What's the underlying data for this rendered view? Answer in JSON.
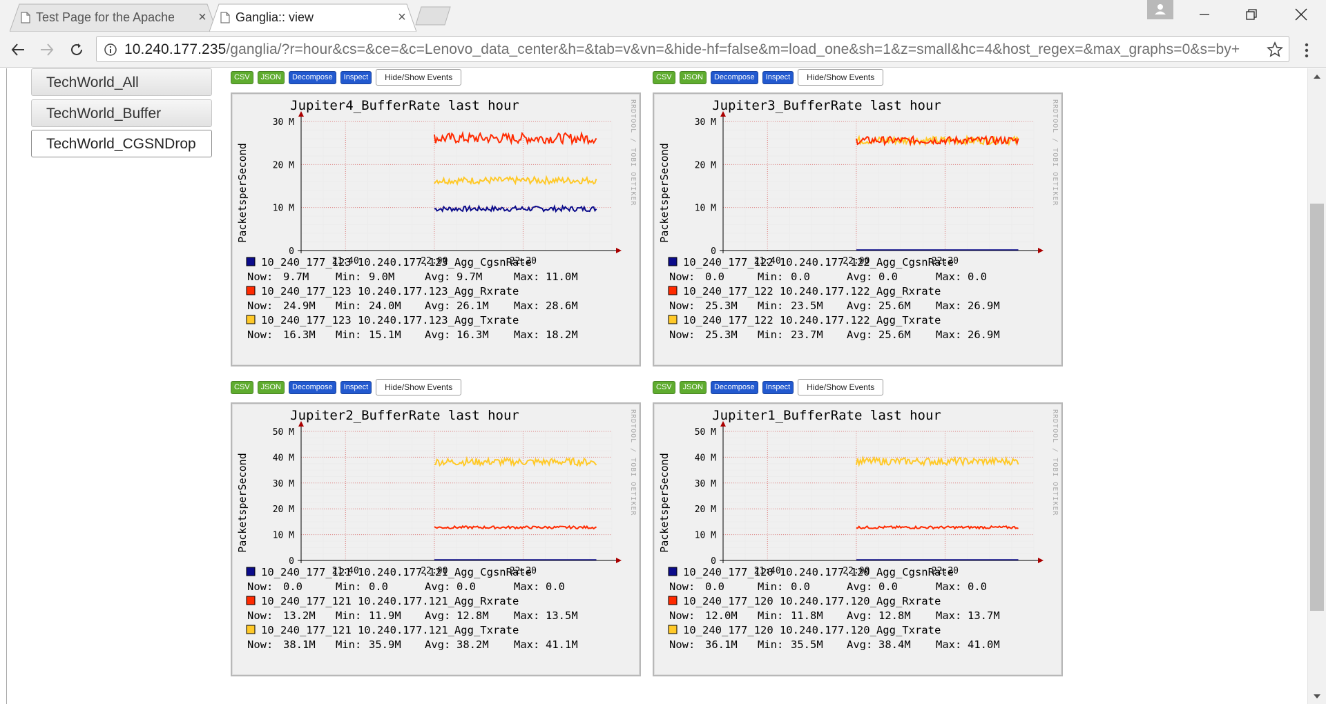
{
  "browser": {
    "tabs": [
      {
        "title": "Test Page for the Apache",
        "active": false
      },
      {
        "title": "Ganglia:: view",
        "active": true
      }
    ],
    "close_glyph": "×",
    "url_host": "10.240.177.235",
    "url_path": "/ganglia/?r=hour&cs=&ce=&c=Lenovo_data_center&h=&tab=v&vn=&hide-hf=false&m=load_one&sh=1&z=small&hc=4&host_regex=&max_graphs=0&s=by+"
  },
  "views": [
    {
      "label": "TechWorld_All",
      "active": false
    },
    {
      "label": "TechWorld_Buffer",
      "active": false
    },
    {
      "label": "TechWorld_CGSNDrop",
      "active": true
    }
  ],
  "graph_buttons": {
    "csv": "CSV",
    "json": "JSON",
    "decompose": "Decompose",
    "inspect": "Inspect",
    "events": "Hide/Show Events"
  },
  "colors": {
    "cgsn": "#0b0b8a",
    "rx": "#ff2a00",
    "tx": "#ffc928",
    "grid_major": "#e08080",
    "grid_minor": "#ececec",
    "axis": "#000000",
    "arrow": "#aa0000"
  },
  "graph_common": {
    "ylabel": "PacketsperSecond",
    "watermark": "RRDTOOL / TOBI OETIKER",
    "x_ticks": [
      "21:40",
      "22:00",
      "22:20"
    ],
    "stat_labels": {
      "now": "Now:",
      "min": "Min:",
      "avg": "Avg:",
      "max": "Max:"
    }
  },
  "graphs": [
    {
      "title": "Jupiter4_BufferRate last hour",
      "y_ticks": [
        "30 M",
        "20 M",
        "10 M",
        "0"
      ],
      "y_max": 30,
      "legend": [
        {
          "label": "10_240_177_123 10.240.177.123_Agg_CgsnRate",
          "color": "#0b0b8a",
          "now": "9.7M",
          "min": "9.0M",
          "avg": "9.7M",
          "max": "11.0M"
        },
        {
          "label": "10_240_177_123 10.240.177.123_Agg_Rxrate",
          "color": "#ff2a00",
          "now": "24.9M",
          "min": "24.0M",
          "avg": "26.1M",
          "max": "28.6M"
        },
        {
          "label": "10_240_177_123 10.240.177.123_Agg_Txrate",
          "color": "#ffc928",
          "now": "16.3M",
          "min": "15.1M",
          "avg": "16.3M",
          "max": "18.2M"
        }
      ]
    },
    {
      "title": "Jupiter3_BufferRate last hour",
      "y_ticks": [
        "30 M",
        "20 M",
        "10 M",
        "0"
      ],
      "y_max": 30,
      "legend": [
        {
          "label": "10_240_177_122 10.240.177.122_Agg_CgsnRate",
          "color": "#0b0b8a",
          "now": "0.0",
          "min": "0.0",
          "avg": "0.0",
          "max": "0.0"
        },
        {
          "label": "10_240_177_122 10.240.177.122_Agg_Rxrate",
          "color": "#ff2a00",
          "now": "25.3M",
          "min": "23.5M",
          "avg": "25.6M",
          "max": "26.9M"
        },
        {
          "label": "10_240_177_122 10.240.177.122_Agg_Txrate",
          "color": "#ffc928",
          "now": "25.3M",
          "min": "23.7M",
          "avg": "25.6M",
          "max": "26.9M"
        }
      ]
    },
    {
      "title": "Jupiter2_BufferRate last hour",
      "y_ticks": [
        "50 M",
        "40 M",
        "30 M",
        "20 M",
        "10 M",
        "0"
      ],
      "y_max": 50,
      "legend": [
        {
          "label": "10_240_177_121 10.240.177.121_Agg_CgsnRate",
          "color": "#0b0b8a",
          "now": "0.0",
          "min": "0.0",
          "avg": "0.0",
          "max": "0.0"
        },
        {
          "label": "10_240_177_121 10.240.177.121_Agg_Rxrate",
          "color": "#ff2a00",
          "now": "13.2M",
          "min": "11.9M",
          "avg": "12.8M",
          "max": "13.5M"
        },
        {
          "label": "10_240_177_121 10.240.177.121_Agg_Txrate",
          "color": "#ffc928",
          "now": "38.1M",
          "min": "35.9M",
          "avg": "38.2M",
          "max": "41.1M"
        }
      ]
    },
    {
      "title": "Jupiter1_BufferRate last hour",
      "y_ticks": [
        "50 M",
        "40 M",
        "30 M",
        "20 M",
        "10 M",
        "0"
      ],
      "y_max": 50,
      "legend": [
        {
          "label": "10_240_177_120 10.240.177.120_Agg_CgsnRate",
          "color": "#0b0b8a",
          "now": "0.0",
          "min": "0.0",
          "avg": "0.0",
          "max": "0.0"
        },
        {
          "label": "10_240_177_120 10.240.177.120_Agg_Rxrate",
          "color": "#ff2a00",
          "now": "12.0M",
          "min": "11.8M",
          "avg": "12.8M",
          "max": "13.7M"
        },
        {
          "label": "10_240_177_120 10.240.177.120_Agg_Txrate",
          "color": "#ffc928",
          "now": "36.1M",
          "min": "35.5M",
          "avg": "38.4M",
          "max": "41.0M"
        }
      ]
    }
  ],
  "chart_data": [
    {
      "type": "line",
      "title": "Jupiter4_BufferRate last hour",
      "ylabel": "PacketsperSecond",
      "ylim": [
        0,
        30
      ],
      "x_ticks": [
        "21:40",
        "22:00",
        "22:20"
      ],
      "data_start": "22:00",
      "series": [
        {
          "name": "10_240_177_123 10.240.177.123_Agg_CgsnRate",
          "level": 9.7,
          "jitter": 0.6
        },
        {
          "name": "10_240_177_123 10.240.177.123_Agg_Rxrate",
          "level": 26.1,
          "jitter": 1.2
        },
        {
          "name": "10_240_177_123 10.240.177.123_Agg_Txrate",
          "level": 16.3,
          "jitter": 0.8
        }
      ]
    },
    {
      "type": "line",
      "title": "Jupiter3_BufferRate last hour",
      "ylabel": "PacketsperSecond",
      "ylim": [
        0,
        30
      ],
      "x_ticks": [
        "21:40",
        "22:00",
        "22:20"
      ],
      "data_start": "22:00",
      "series": [
        {
          "name": "10_240_177_122 10.240.177.122_Agg_CgsnRate",
          "level": 0.0,
          "jitter": 0
        },
        {
          "name": "10_240_177_122 10.240.177.122_Agg_Rxrate",
          "level": 25.6,
          "jitter": 0.9
        },
        {
          "name": "10_240_177_122 10.240.177.122_Agg_Txrate",
          "level": 25.6,
          "jitter": 0.9
        }
      ]
    },
    {
      "type": "line",
      "title": "Jupiter2_BufferRate last hour",
      "ylabel": "PacketsperSecond",
      "ylim": [
        0,
        50
      ],
      "x_ticks": [
        "21:40",
        "22:00",
        "22:20"
      ],
      "data_start": "22:00",
      "series": [
        {
          "name": "10_240_177_121 10.240.177.121_Agg_CgsnRate",
          "level": 0.0,
          "jitter": 0
        },
        {
          "name": "10_240_177_121 10.240.177.121_Agg_Rxrate",
          "level": 12.8,
          "jitter": 0.5
        },
        {
          "name": "10_240_177_121 10.240.177.121_Agg_Txrate",
          "level": 38.2,
          "jitter": 1.4
        }
      ]
    },
    {
      "type": "line",
      "title": "Jupiter1_BufferRate last hour",
      "ylabel": "PacketsperSecond",
      "ylim": [
        0,
        50
      ],
      "x_ticks": [
        "21:40",
        "22:00",
        "22:20"
      ],
      "data_start": "22:00",
      "series": [
        {
          "name": "10_240_177_120 10.240.177.120_Agg_CgsnRate",
          "level": 0.0,
          "jitter": 0
        },
        {
          "name": "10_240_177_120 10.240.177.120_Agg_Rxrate",
          "level": 12.8,
          "jitter": 0.5
        },
        {
          "name": "10_240_177_120 10.240.177.120_Agg_Txrate",
          "level": 38.4,
          "jitter": 1.4
        }
      ]
    }
  ]
}
